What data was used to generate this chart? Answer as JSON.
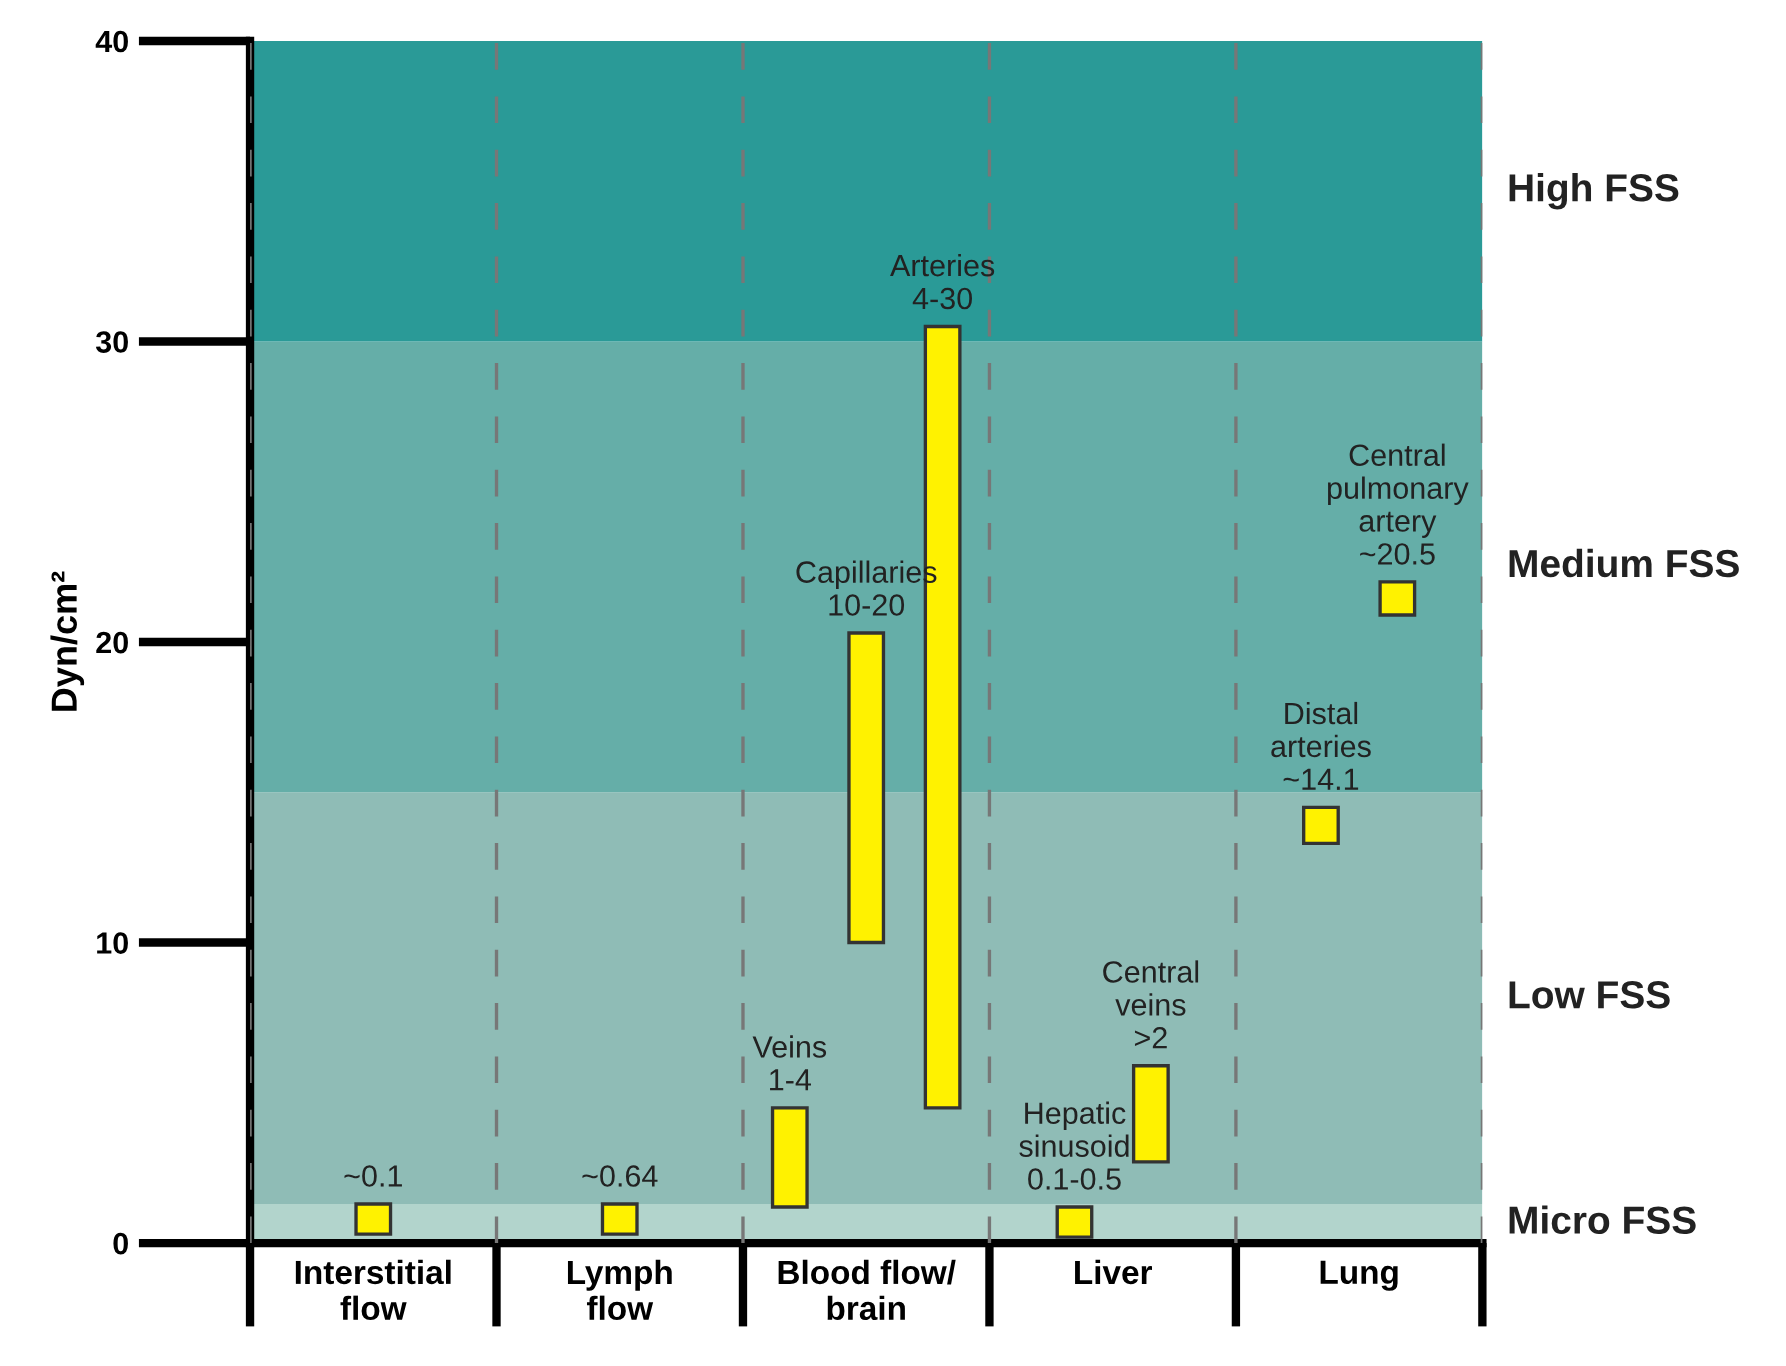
{
  "chart_data": {
    "type": "bar",
    "ylabel": "Dyn/cm²",
    "categories": [
      "Interstitial\nflow",
      "Lymph\nflow",
      "Blood flow/\nbrain",
      "Liver",
      "Lung"
    ],
    "series": [
      {
        "color": "#fff200",
        "values": [
          1.0,
          1.0,
          3.3,
          1.0,
          1.2
        ],
        "base": [
          0.3,
          0.3,
          1.2,
          0.2,
          13.3
        ]
      },
      {
        "color": "#fff200",
        "values": [
          null,
          null,
          10.3,
          3.2,
          1.1
        ],
        "base": [
          null,
          null,
          10.0,
          2.7,
          20.9
        ]
      },
      {
        "color": "#fff200",
        "values": [
          null,
          null,
          26.0,
          null,
          null
        ],
        "base": [
          null,
          null,
          4.5,
          null,
          null
        ]
      }
    ],
    "ylim": [
      0,
      40
    ],
    "yticks": [
      0,
      10,
      20,
      30,
      40
    ],
    "grid": "x",
    "bands": [
      {
        "axis": "y",
        "from": 0,
        "to": 1.3,
        "label": "Micro FSS",
        "color": "#b2d4cc"
      },
      {
        "axis": "y",
        "from": 1.3,
        "to": 15,
        "label": "Low FSS",
        "color": "#8fbcb6"
      },
      {
        "axis": "y",
        "from": 15,
        "to": 30,
        "label": "Medium FSS",
        "color": "#65aea8"
      },
      {
        "axis": "y",
        "from": 30,
        "to": 40,
        "label": "High FSS",
        "color": "#2a9a97"
      }
    ],
    "annotations": [
      "~0.1",
      "~0.64",
      "Veins\n1-4",
      "Capillaries\n10-20",
      "Arteries\n4-30",
      "Hepatic\nsinusoid\n0.1-0.5",
      "Central\nveins\n>2",
      "Distal\narteries\n~14.1",
      "Central\npulmonary\nartery\n~20.5"
    ]
  }
}
